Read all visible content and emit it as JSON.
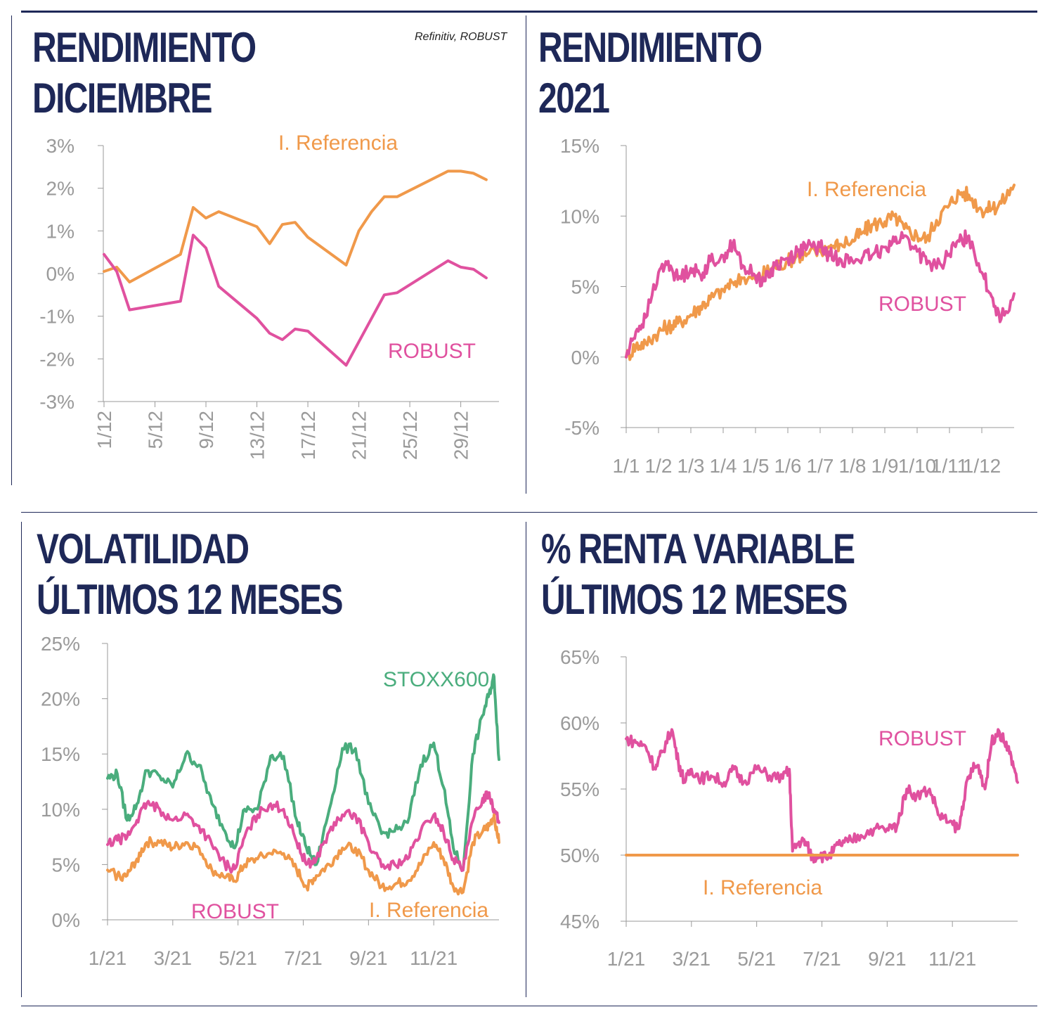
{
  "source": "Refinitiv, ROBUST",
  "colors": {
    "robust": "#e0519f",
    "referencia": "#f0994a",
    "stoxx": "#4aad7d",
    "axis": "#9a9a9a",
    "title": "#1e2858"
  },
  "panels": {
    "p1": {
      "title_line1": "RENDIMIENTO",
      "title_line2": "DICIEMBRE"
    },
    "p2": {
      "title_line1": "RENDIMIENTO",
      "title_line2": "2021"
    },
    "p3": {
      "title_line1": "VOLATILIDAD",
      "title_line2": "ÚLTIMOS 12 MESES"
    },
    "p4": {
      "title_line1": "% RENTA VARIABLE",
      "title_line2": "ÚLTIMOS 12 MESES"
    }
  },
  "chart_data": [
    {
      "id": "p1",
      "type": "line",
      "title": "RENDIMIENTO DICIEMBRE",
      "x_ticks": [
        "1/12",
        "5/12",
        "9/12",
        "13/12",
        "17/12",
        "21/12",
        "25/12",
        "29/12"
      ],
      "y_ticks": [
        "3%",
        "2%",
        "1%",
        "0%",
        "-1%",
        "-2%",
        "-3%"
      ],
      "ylim": [
        -3,
        3
      ],
      "xlim": [
        1,
        32
      ],
      "series": [
        {
          "name": "I. Referencia",
          "x": [
            1,
            2,
            3,
            7,
            8,
            9,
            10,
            13,
            14,
            15,
            16,
            17,
            20,
            21,
            22,
            23,
            24,
            28,
            29,
            30,
            31
          ],
          "values": [
            0.05,
            0.15,
            -0.2,
            0.45,
            1.55,
            1.3,
            1.45,
            1.1,
            0.7,
            1.15,
            1.2,
            0.85,
            0.2,
            1.0,
            1.45,
            1.8,
            1.8,
            2.4,
            2.4,
            2.35,
            2.2
          ]
        },
        {
          "name": "ROBUST",
          "x": [
            1,
            2,
            3,
            7,
            8,
            9,
            10,
            13,
            14,
            15,
            16,
            17,
            20,
            21,
            22,
            23,
            24,
            28,
            29,
            30,
            31
          ],
          "values": [
            0.45,
            0.05,
            -0.85,
            -0.65,
            0.9,
            0.6,
            -0.3,
            -1.05,
            -1.4,
            -1.55,
            -1.3,
            -1.35,
            -2.15,
            -1.6,
            -1.05,
            -0.5,
            -0.45,
            0.3,
            0.15,
            0.1,
            -0.1
          ]
        }
      ]
    },
    {
      "id": "p2",
      "type": "line",
      "title": "RENDIMIENTO 2021",
      "x_ticks": [
        "1/1",
        "1/2",
        "1/3",
        "1/4",
        "1/5",
        "1/6",
        "1/7",
        "1/8",
        "1/9",
        "1/10",
        "1/11",
        "1/12"
      ],
      "y_ticks": [
        "15%",
        "10%",
        "5%",
        "0%",
        "-5%"
      ],
      "ylim": [
        -5,
        15
      ],
      "xlim": [
        0,
        12
      ],
      "series": [
        {
          "name": "I. Referencia",
          "x": [
            0,
            0.3,
            0.6,
            1,
            1.3,
            1.6,
            2,
            2.3,
            2.6,
            3,
            3.3,
            3.6,
            4,
            4.3,
            4.6,
            5,
            5.3,
            5.6,
            6,
            6.3,
            6.6,
            7,
            7.3,
            7.6,
            8,
            8.3,
            8.6,
            9,
            9.3,
            9.6,
            10,
            10.3,
            10.6,
            11,
            11.3,
            11.6,
            12
          ],
          "values": [
            0,
            0.8,
            1.0,
            1.8,
            2.2,
            2.4,
            3.0,
            3.6,
            4.1,
            4.8,
            5.3,
            5.6,
            5.5,
            6.0,
            6.4,
            6.8,
            7.2,
            7.3,
            7.5,
            7.8,
            8.0,
            8.3,
            8.8,
            9.4,
            9.6,
            10.0,
            9.1,
            8.6,
            8.4,
            9.7,
            10.8,
            11.7,
            11.5,
            10.4,
            10.5,
            10.9,
            12.2
          ]
        },
        {
          "name": "ROBUST",
          "x": [
            0,
            0.3,
            0.6,
            1,
            1.3,
            1.6,
            2,
            2.3,
            2.6,
            3,
            3.3,
            3.6,
            4,
            4.3,
            4.6,
            5,
            5.3,
            5.6,
            6,
            6.3,
            6.6,
            7,
            7.3,
            7.6,
            8,
            8.3,
            8.6,
            9,
            9.3,
            9.6,
            10,
            10.3,
            10.6,
            11,
            11.3,
            11.6,
            12
          ],
          "values": [
            0,
            1.8,
            2.8,
            6.0,
            6.8,
            5.5,
            6.3,
            5.8,
            6.8,
            7.2,
            8.0,
            6.5,
            5.7,
            5.4,
            6.5,
            7.0,
            7.5,
            7.8,
            7.8,
            7.2,
            7.0,
            6.8,
            7.0,
            7.2,
            7.8,
            8.2,
            8.6,
            7.5,
            6.6,
            6.3,
            7.3,
            8.2,
            8.6,
            6.0,
            4.3,
            2.7,
            4.5
          ]
        }
      ]
    },
    {
      "id": "p3",
      "type": "line",
      "title": "VOLATILIDAD ÚLTIMOS 12 MESES",
      "x_ticks": [
        "1/21",
        "3/21",
        "5/21",
        "7/21",
        "9/21",
        "11/21"
      ],
      "y_ticks": [
        "25%",
        "20%",
        "15%",
        "10%",
        "5%",
        "0%"
      ],
      "ylim": [
        0,
        25
      ],
      "xlim": [
        0,
        12
      ],
      "series": [
        {
          "name": "STOXX600",
          "x": [
            0,
            0.3,
            0.6,
            0.9,
            1.2,
            1.6,
            2,
            2.4,
            2.8,
            3.2,
            3.6,
            3.9,
            4.2,
            4.6,
            5,
            5.4,
            5.8,
            6.1,
            6.4,
            6.8,
            7.2,
            7.6,
            8,
            8.4,
            8.8,
            9.2,
            9.6,
            10,
            10.3,
            10.6,
            10.9,
            11.2,
            11.5,
            11.7,
            11.85,
            12
          ],
          "values": [
            12.8,
            13.2,
            9.0,
            10.5,
            13.5,
            13.0,
            12.0,
            15.0,
            14.0,
            10.5,
            8.0,
            6.5,
            10.0,
            10.0,
            14.8,
            14.8,
            9.0,
            6.5,
            5.0,
            10.0,
            15.5,
            15.5,
            10.5,
            7.8,
            8.0,
            8.8,
            14.0,
            16.0,
            12.0,
            6.5,
            4.5,
            15.0,
            18.5,
            20.5,
            22.0,
            14.5
          ]
        },
        {
          "name": "ROBUST",
          "x": [
            0,
            0.3,
            0.6,
            0.9,
            1.2,
            1.6,
            2,
            2.4,
            2.8,
            3.2,
            3.6,
            3.9,
            4.2,
            4.6,
            5,
            5.4,
            5.8,
            6.1,
            6.4,
            6.8,
            7.2,
            7.6,
            8,
            8.4,
            8.8,
            9.2,
            9.6,
            10,
            10.3,
            10.6,
            10.9,
            11.2,
            11.5,
            11.7,
            11.85,
            12
          ],
          "values": [
            6.8,
            7.2,
            7.5,
            9.0,
            10.5,
            10.0,
            9.0,
            9.5,
            8.5,
            6.8,
            5.0,
            4.6,
            7.5,
            9.5,
            10.5,
            10.0,
            7.0,
            5.0,
            5.5,
            8.0,
            9.5,
            9.5,
            7.0,
            4.8,
            5.0,
            5.5,
            8.0,
            9.5,
            8.0,
            5.5,
            4.5,
            9.0,
            11.0,
            11.5,
            10.0,
            8.8
          ]
        },
        {
          "name": "I. Referencia",
          "x": [
            0,
            0.3,
            0.6,
            0.9,
            1.2,
            1.6,
            2,
            2.4,
            2.8,
            3.2,
            3.6,
            3.9,
            4.2,
            4.6,
            5,
            5.4,
            5.8,
            6.1,
            6.4,
            6.8,
            7.2,
            7.6,
            8,
            8.4,
            8.8,
            9.2,
            9.6,
            10,
            10.3,
            10.6,
            10.9,
            11.2,
            11.5,
            11.7,
            11.85,
            12
          ],
          "values": [
            4.5,
            4.0,
            4.0,
            5.5,
            7.0,
            7.0,
            6.5,
            7.0,
            6.5,
            4.5,
            3.8,
            3.5,
            5.0,
            5.5,
            6.0,
            6.0,
            4.5,
            3.0,
            4.0,
            5.0,
            6.5,
            6.5,
            4.5,
            3.0,
            3.2,
            3.5,
            5.0,
            7.0,
            5.5,
            3.0,
            2.5,
            7.0,
            8.0,
            8.5,
            9.5,
            7.0
          ]
        }
      ]
    },
    {
      "id": "p4",
      "type": "line",
      "title": "% RENTA VARIABLE ÚLTIMOS 12 MESES",
      "x_ticks": [
        "1/21",
        "3/21",
        "5/21",
        "7/21",
        "9/21",
        "11/21"
      ],
      "y_ticks": [
        "65%",
        "60%",
        "55%",
        "50%",
        "45%"
      ],
      "ylim": [
        45,
        65
      ],
      "xlim": [
        0,
        12
      ],
      "series": [
        {
          "name": "ROBUST",
          "x": [
            0,
            0.3,
            0.6,
            0.9,
            1.1,
            1.4,
            1.6,
            1.8,
            2,
            2.3,
            2.6,
            3,
            3.3,
            3.6,
            4,
            4.4,
            4.8,
            5,
            5.1,
            5.3,
            5.5,
            5.7,
            5.9,
            6.2,
            6.5,
            6.8,
            7.2,
            7.6,
            8,
            8.3,
            8.6,
            8.9,
            9.3,
            9.6,
            9.9,
            10.2,
            10.4,
            10.6,
            10.8,
            11,
            11.2,
            11.4,
            11.6,
            11.8,
            12
          ],
          "values": [
            58.8,
            58.5,
            58.2,
            56.5,
            57.8,
            59.5,
            57.0,
            55.5,
            56.5,
            55.8,
            56.0,
            55.5,
            56.5,
            55.5,
            56.5,
            56.0,
            55.8,
            56.5,
            50.3,
            51.0,
            51.0,
            49.8,
            50.0,
            49.8,
            50.8,
            51.0,
            51.5,
            52.0,
            52.0,
            52.2,
            55.0,
            54.5,
            55.0,
            53.0,
            52.5,
            52.0,
            55.0,
            56.5,
            56.8,
            55.0,
            58.5,
            59.5,
            58.5,
            57.5,
            55.5
          ]
        },
        {
          "name": "I.  Referencia",
          "x": [
            0,
            12
          ],
          "values": [
            50,
            50
          ]
        }
      ]
    }
  ]
}
